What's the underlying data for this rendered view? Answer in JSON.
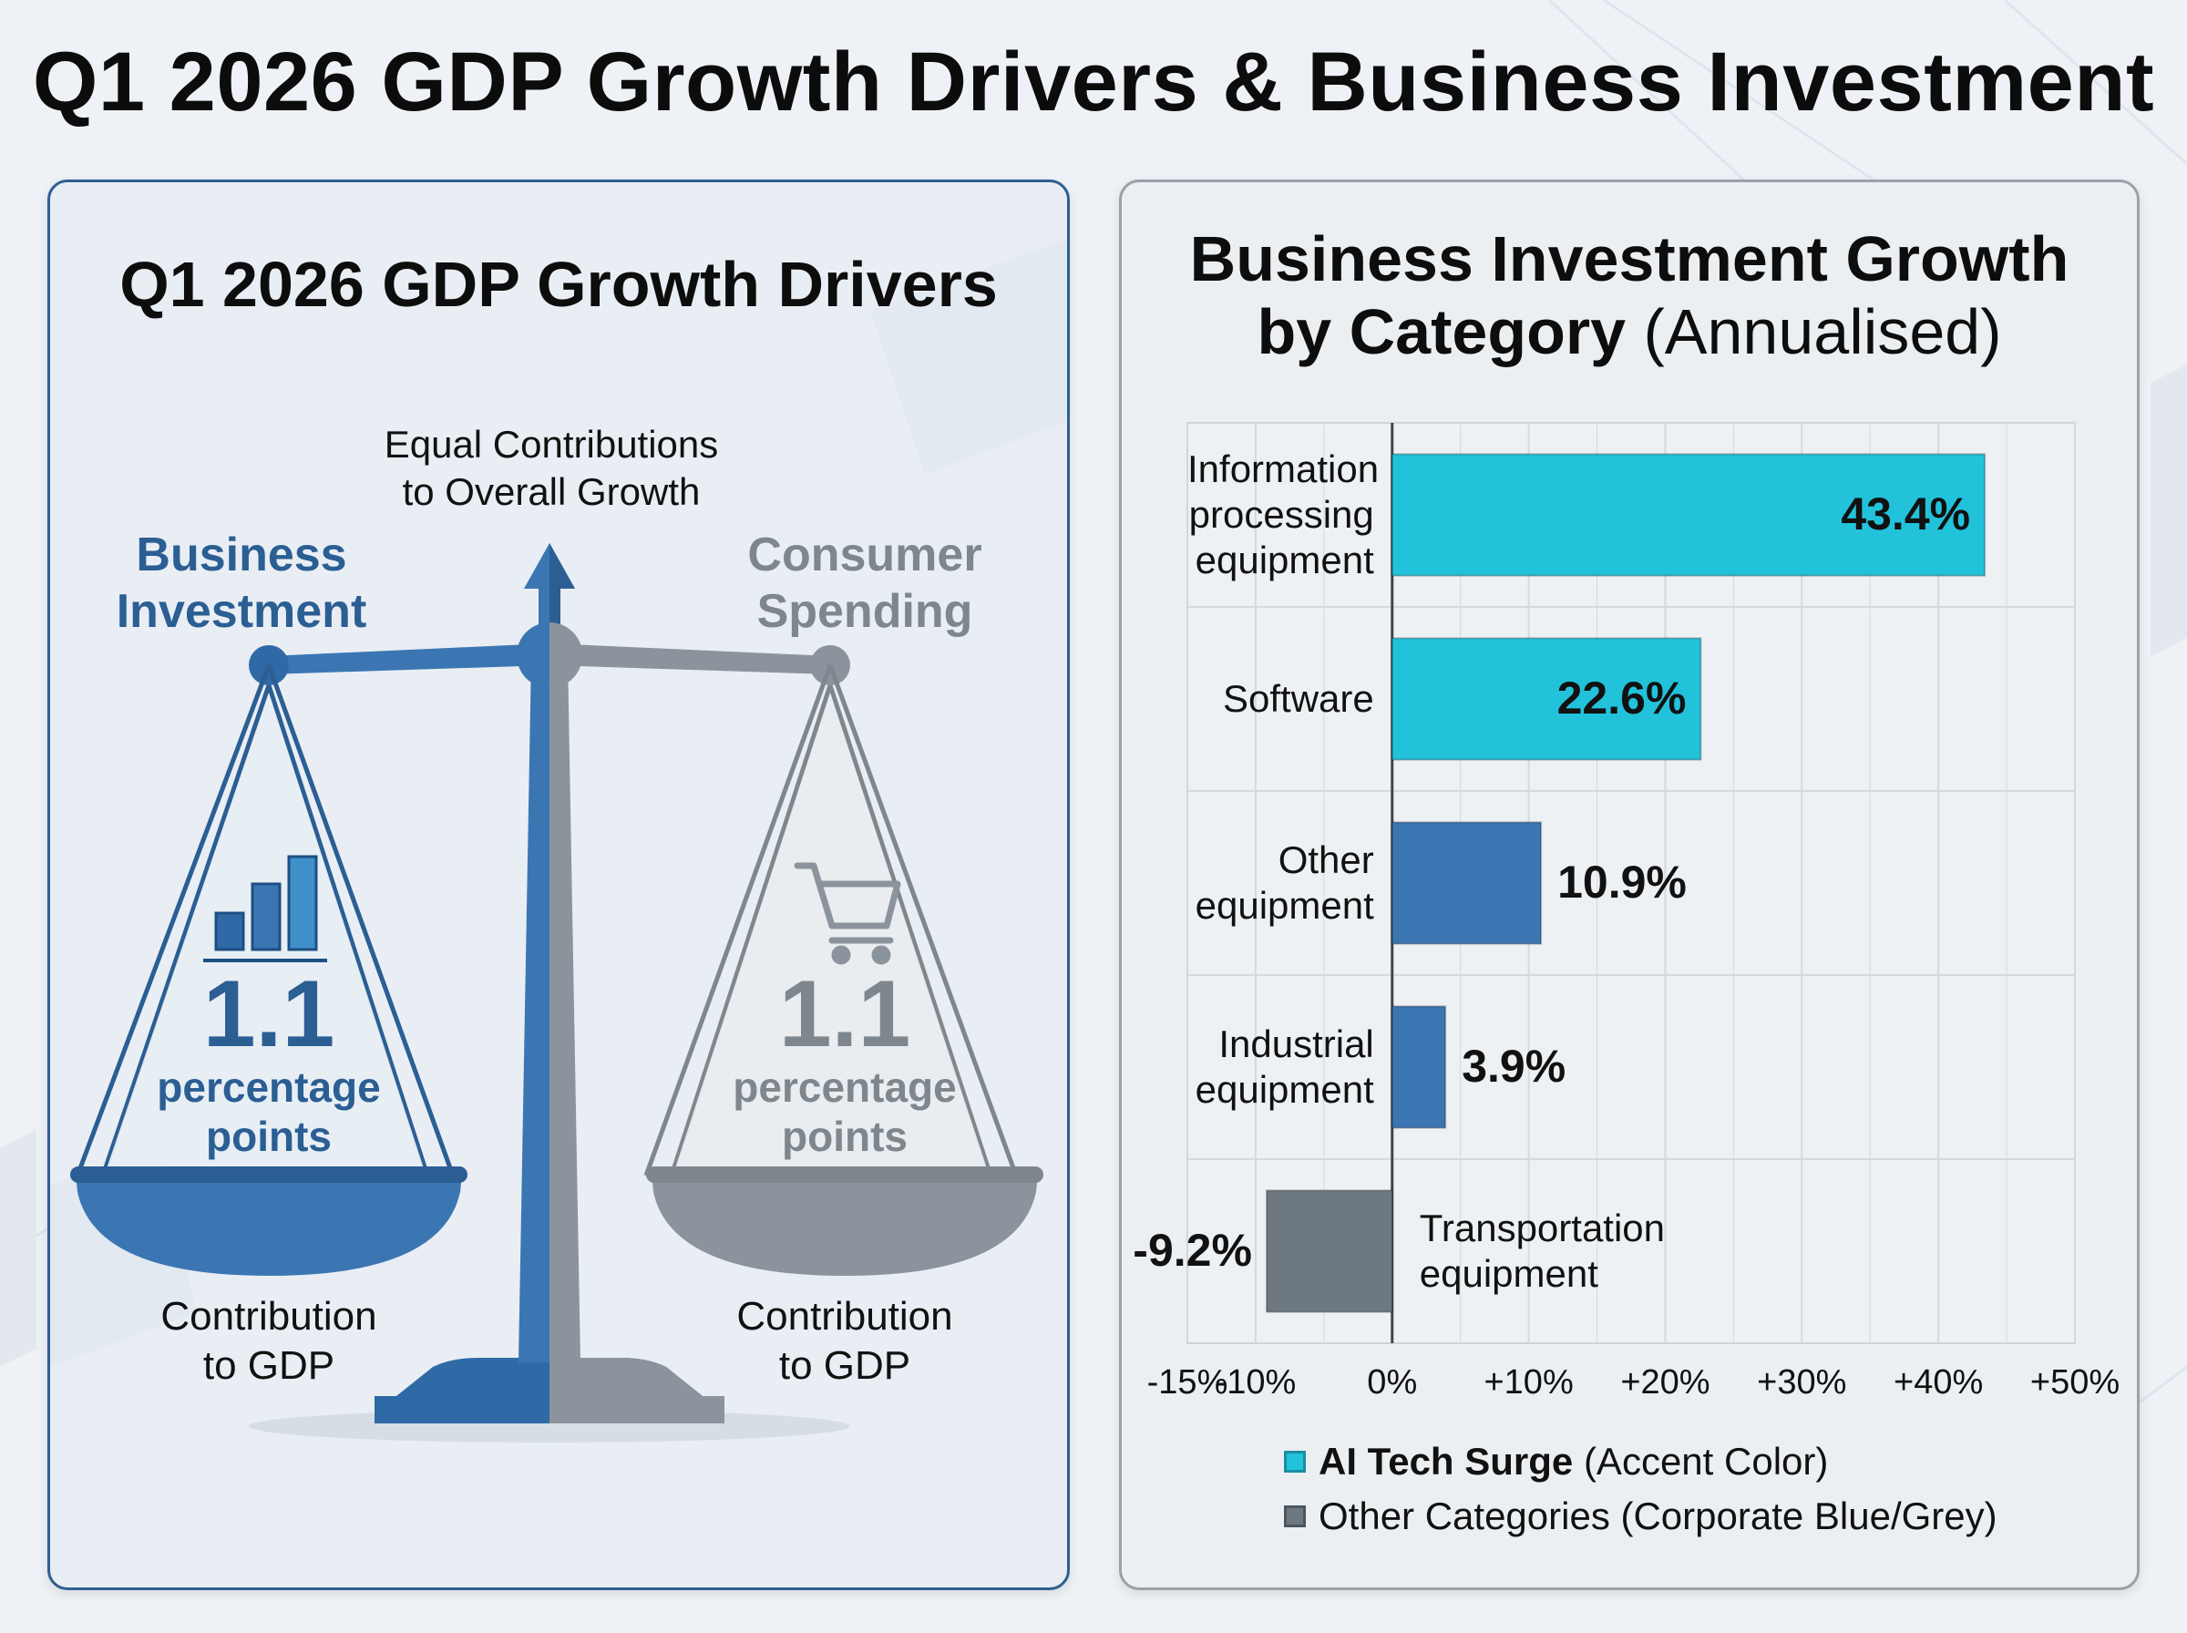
{
  "title": "Q1 2026 GDP Growth Drivers & Business Investment",
  "colors": {
    "accent": "#22c2db",
    "corporate_blue": "#3b76b3",
    "grey": "#6d7880",
    "dark_blue": "#2b5e93"
  },
  "left_panel": {
    "title": "Q1 2026 GDP Growth Drivers",
    "center_label_line1": "Equal Contributions",
    "center_label_line2": "to Overall Growth",
    "business": {
      "name_line1": "Business",
      "name_line2": "Investment",
      "value": "1.1",
      "unit_line1": "percentage",
      "unit_line2": "points",
      "caption_line1": "Contribution",
      "caption_line2": "to GDP",
      "icon": "bar-chart-icon"
    },
    "consumer": {
      "name_line1": "Consumer",
      "name_line2": "Spending",
      "value": "1.1",
      "unit_line1": "percentage",
      "unit_line2": "points",
      "caption_line1": "Contribution",
      "caption_line2": "to GDP",
      "icon": "shopping-cart-icon"
    }
  },
  "chart_data": {
    "type": "bar",
    "orientation": "horizontal",
    "title": "Business Investment Growth by Category",
    "title_bold_part_line1": "Business Investment Growth",
    "title_bold_part_line2": "by Category",
    "title_light_part": "(Annualised)",
    "categories": [
      "Information processing equipment",
      "Software",
      "Other equipment",
      "Industrial equipment",
      "Transportation equipment"
    ],
    "category_lines": [
      [
        "Information",
        "processing",
        "equipment"
      ],
      [
        "Software"
      ],
      [
        "Other",
        "equipment"
      ],
      [
        "Industrial",
        "equipment"
      ],
      [
        "Transportation",
        "equipment"
      ]
    ],
    "values": [
      43.4,
      22.6,
      10.9,
      3.9,
      -9.2
    ],
    "value_labels": [
      "43.4%",
      "22.6%",
      "10.9%",
      "3.9%",
      "-9.2%"
    ],
    "bar_colors": [
      "#22c2db",
      "#22c2db",
      "#3b76b3",
      "#3b76b3",
      "#6d7880"
    ],
    "xlim": [
      -15,
      50
    ],
    "xticks": [
      -15,
      -10,
      0,
      10,
      20,
      30,
      40,
      50
    ],
    "xtick_labels": [
      "-15%",
      "-10%",
      "0%",
      "+10%",
      "+20%",
      "+30%",
      "+40%",
      "+50%"
    ],
    "grid": true,
    "legend": [
      {
        "bold": "AI Tech Surge",
        "light": " (Accent Color)",
        "color": "#22c2db"
      },
      {
        "bold": "",
        "light": "Other Categories (Corporate Blue/Grey)",
        "color": "#6d7880"
      }
    ],
    "legend_position": "bottom"
  }
}
